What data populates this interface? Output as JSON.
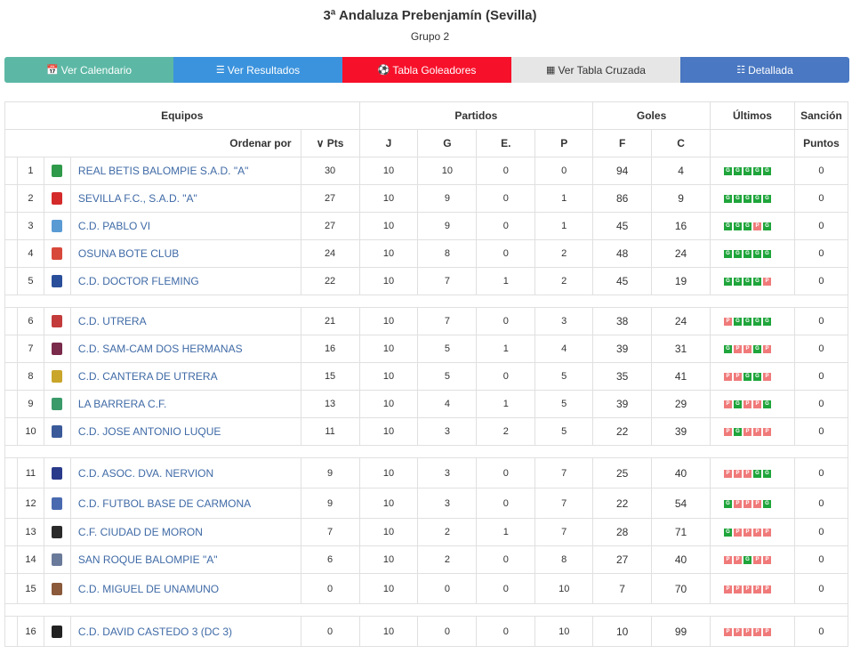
{
  "header": {
    "title": "3ª Andaluza Prebenjamín (Sevilla)",
    "subtitle": "Grupo 2"
  },
  "buttons": [
    {
      "label": "Ver Calendario",
      "icon": "calendar-icon",
      "color": "#5cb8a5"
    },
    {
      "label": "Ver Resultados",
      "icon": "list-icon",
      "color": "#3b93dd"
    },
    {
      "label": "Tabla Goleadores",
      "icon": "soccer-ball-icon",
      "color": "#f7102a"
    },
    {
      "label": "Ver Tabla Cruzada",
      "icon": "grid-icon",
      "color": "#e6e6e6"
    },
    {
      "label": "Detallada",
      "icon": "detail-list-icon",
      "color": "#4a78c2"
    }
  ],
  "table": {
    "group_headers": {
      "teams": "Equipos",
      "matches": "Partidos",
      "goals": "Goles",
      "last": "Últimos",
      "penalty": "Sanción"
    },
    "sub_headers": {
      "order_by": "Ordenar por",
      "pts": "Pts",
      "j": "J",
      "g": "G",
      "e": "E.",
      "p": "P",
      "f": "F",
      "c": "C",
      "points": "Puntos"
    },
    "rows": [
      {
        "pos": "1",
        "team": "REAL BETIS BALOMPIE S.A.D. \"A\"",
        "pts": "30",
        "j": "10",
        "g": "10",
        "e": "0",
        "p": "0",
        "f": "94",
        "c": "4",
        "form": [
          "G",
          "G",
          "G",
          "G",
          "G"
        ],
        "sancion": "0",
        "logo": "#2f9a4a"
      },
      {
        "pos": "2",
        "team": "SEVILLA F.C., S.A.D. \"A\"",
        "pts": "27",
        "j": "10",
        "g": "9",
        "e": "0",
        "p": "1",
        "f": "86",
        "c": "9",
        "form": [
          "G",
          "G",
          "G",
          "G",
          "G"
        ],
        "sancion": "0",
        "logo": "#d42a2a"
      },
      {
        "pos": "3",
        "team": "C.D. PABLO VI",
        "pts": "27",
        "j": "10",
        "g": "9",
        "e": "0",
        "p": "1",
        "f": "45",
        "c": "16",
        "form": [
          "G",
          "G",
          "G",
          "P",
          "G"
        ],
        "sancion": "0",
        "logo": "#5a9bd4"
      },
      {
        "pos": "4",
        "team": "OSUNA BOTE CLUB",
        "pts": "24",
        "j": "10",
        "g": "8",
        "e": "0",
        "p": "2",
        "f": "48",
        "c": "24",
        "form": [
          "G",
          "G",
          "G",
          "G",
          "G"
        ],
        "sancion": "0",
        "logo": "#d8483a"
      },
      {
        "pos": "5",
        "team": "C.D. DOCTOR FLEMING",
        "pts": "22",
        "j": "10",
        "g": "7",
        "e": "1",
        "p": "2",
        "f": "45",
        "c": "19",
        "form": [
          "G",
          "G",
          "G",
          "G",
          "P"
        ],
        "sancion": "0",
        "logo": "#2a4f9a"
      },
      {
        "pos": "6",
        "team": "C.D. UTRERA",
        "pts": "21",
        "j": "10",
        "g": "7",
        "e": "0",
        "p": "3",
        "f": "38",
        "c": "24",
        "form": [
          "P",
          "G",
          "G",
          "G",
          "G"
        ],
        "sancion": "0",
        "logo": "#c33b3b"
      },
      {
        "pos": "7",
        "team": "C.D. SAM-CAM DOS HERMANAS",
        "pts": "16",
        "j": "10",
        "g": "5",
        "e": "1",
        "p": "4",
        "f": "39",
        "c": "31",
        "form": [
          "G",
          "P",
          "P",
          "G",
          "P"
        ],
        "sancion": "0",
        "logo": "#7a2a4a"
      },
      {
        "pos": "8",
        "team": "C.D. CANTERA DE UTRERA",
        "pts": "15",
        "j": "10",
        "g": "5",
        "e": "0",
        "p": "5",
        "f": "35",
        "c": "41",
        "form": [
          "P",
          "P",
          "G",
          "G",
          "P"
        ],
        "sancion": "0",
        "logo": "#c9a52a"
      },
      {
        "pos": "9",
        "team": "LA BARRERA C.F.",
        "pts": "13",
        "j": "10",
        "g": "4",
        "e": "1",
        "p": "5",
        "f": "39",
        "c": "29",
        "form": [
          "P",
          "G",
          "P",
          "P",
          "G"
        ],
        "sancion": "0",
        "logo": "#3a9a6a"
      },
      {
        "pos": "10",
        "team": "C.D. JOSE ANTONIO LUQUE",
        "pts": "11",
        "j": "10",
        "g": "3",
        "e": "2",
        "p": "5",
        "f": "22",
        "c": "39",
        "form": [
          "P",
          "G",
          "P",
          "P",
          "P"
        ],
        "sancion": "0",
        "logo": "#3a5a9a"
      },
      {
        "pos": "11",
        "team": "C.D. ASOC. DVA. NERVION",
        "pts": "9",
        "j": "10",
        "g": "3",
        "e": "0",
        "p": "7",
        "f": "25",
        "c": "40",
        "form": [
          "P",
          "P",
          "P",
          "G",
          "G"
        ],
        "sancion": "0",
        "logo": "#2a3a8a"
      },
      {
        "pos": "12",
        "team": "C.D. FUTBOL BASE DE CARMONA",
        "pts": "9",
        "j": "10",
        "g": "3",
        "e": "0",
        "p": "7",
        "f": "22",
        "c": "54",
        "form": [
          "G",
          "P",
          "P",
          "P",
          "G"
        ],
        "sancion": "0",
        "logo": "#4a6ab0"
      },
      {
        "pos": "13",
        "team": "C.F. CIUDAD DE MORON",
        "pts": "7",
        "j": "10",
        "g": "2",
        "e": "1",
        "p": "7",
        "f": "28",
        "c": "71",
        "form": [
          "G",
          "P",
          "P",
          "P",
          "P"
        ],
        "sancion": "0",
        "logo": "#2a2a2a"
      },
      {
        "pos": "14",
        "team": "SAN ROQUE BALOMPIE \"A\"",
        "pts": "6",
        "j": "10",
        "g": "2",
        "e": "0",
        "p": "8",
        "f": "27",
        "c": "40",
        "form": [
          "P",
          "P",
          "G",
          "P",
          "P"
        ],
        "sancion": "0",
        "logo": "#6a7a9a"
      },
      {
        "pos": "15",
        "team": "C.D. MIGUEL DE UNAMUNO",
        "pts": "0",
        "j": "10",
        "g": "0",
        "e": "0",
        "p": "10",
        "f": "7",
        "c": "70",
        "form": [
          "P",
          "P",
          "P",
          "P",
          "P"
        ],
        "sancion": "0",
        "logo": "#8a5a3a"
      },
      {
        "pos": "16",
        "team": "C.D. DAVID CASTEDO 3 (DC 3)",
        "pts": "0",
        "j": "10",
        "g": "0",
        "e": "0",
        "p": "10",
        "f": "10",
        "c": "99",
        "form": [
          "P",
          "P",
          "P",
          "P",
          "P"
        ],
        "sancion": "0",
        "logo": "#222222"
      }
    ]
  }
}
